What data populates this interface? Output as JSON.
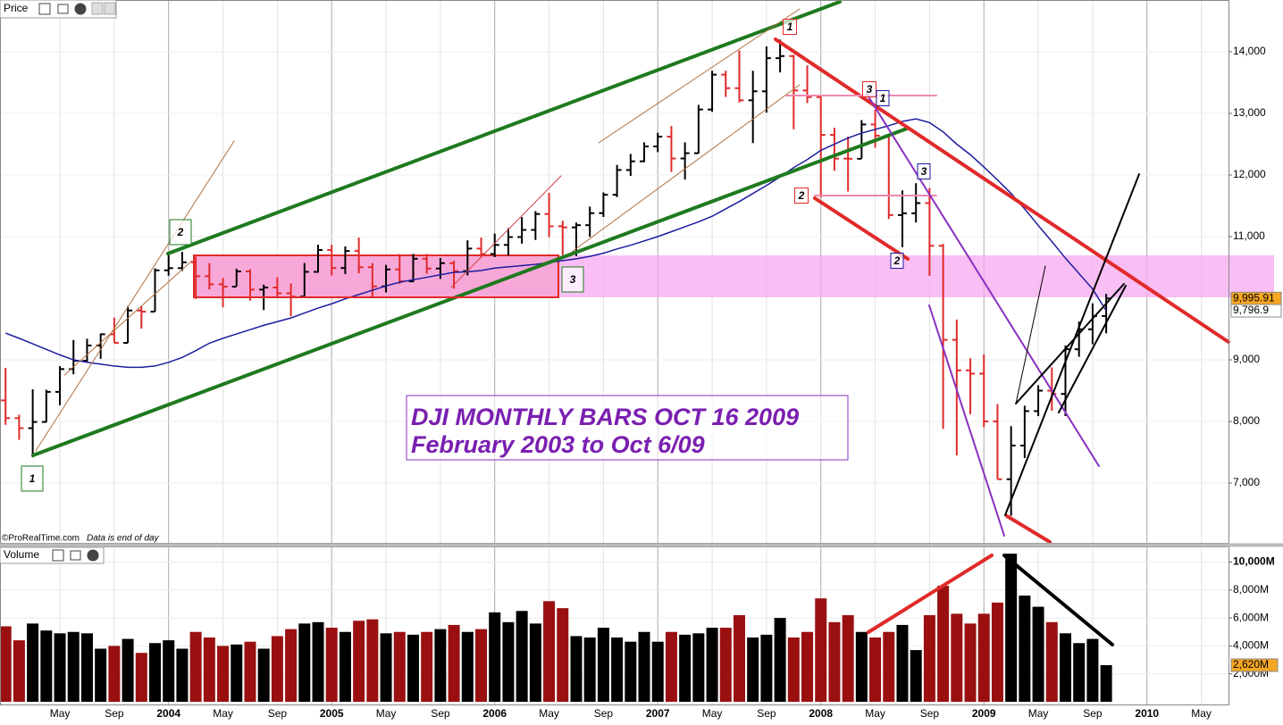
{
  "chart_data": [
    {
      "type": "ohlc",
      "title": "Price",
      "annotations": [
        "DJI MONTHLY BARS OCT 16 2009",
        "February 2003 to Oct 6/09"
      ],
      "source": "©ProRealTime.com",
      "note": "Data is end of day",
      "x": [
        "2003-01",
        "2003-02",
        "2003-03",
        "2003-04",
        "2003-05",
        "2003-06",
        "2003-07",
        "2003-08",
        "2003-09",
        "2003-10",
        "2003-11",
        "2003-12",
        "2004-01",
        "2004-02",
        "2004-03",
        "2004-04",
        "2004-05",
        "2004-06",
        "2004-07",
        "2004-08",
        "2004-09",
        "2004-10",
        "2004-11",
        "2004-12",
        "2005-01",
        "2005-02",
        "2005-03",
        "2005-04",
        "2005-05",
        "2005-06",
        "2005-07",
        "2005-08",
        "2005-09",
        "2005-10",
        "2005-11",
        "2005-12",
        "2006-01",
        "2006-02",
        "2006-03",
        "2006-04",
        "2006-05",
        "2006-06",
        "2006-07",
        "2006-08",
        "2006-09",
        "2006-10",
        "2006-11",
        "2006-12",
        "2007-01",
        "2007-02",
        "2007-03",
        "2007-04",
        "2007-05",
        "2007-06",
        "2007-07",
        "2007-08",
        "2007-09",
        "2007-10",
        "2007-11",
        "2007-12",
        "2008-01",
        "2008-02",
        "2008-03",
        "2008-04",
        "2008-05",
        "2008-06",
        "2008-07",
        "2008-08",
        "2008-09",
        "2008-10",
        "2008-11",
        "2008-12",
        "2009-01",
        "2009-02",
        "2009-03",
        "2009-04",
        "2009-05",
        "2009-06",
        "2009-07",
        "2009-08",
        "2009-09",
        "2009-10"
      ],
      "open": [
        8342,
        8054,
        7891,
        7992,
        8480,
        8850,
        8985,
        9233,
        9415,
        9275,
        9801,
        9782,
        10453,
        10488,
        10583,
        10357,
        10226,
        10188,
        10435,
        10140,
        10174,
        10080,
        10027,
        10428,
        10783,
        10490,
        10766,
        10504,
        10193,
        10467,
        10275,
        10641,
        10482,
        10569,
        10440,
        10806,
        10718,
        10865,
        10993,
        11109,
        11367,
        11168,
        11150,
        11186,
        11381,
        11679,
        12081,
        12222,
        12463,
        12622,
        12268,
        12354,
        13063,
        13628,
        13409,
        13212,
        13358,
        13896,
        13930,
        13372,
        13265,
        12650,
        12266,
        12263,
        12820,
        12638,
        11350,
        11378,
        11544,
        10851,
        9325,
        8829,
        8776,
        8001,
        7063,
        7609,
        8168,
        8500,
        8447,
        9172,
        9496,
        9712
      ],
      "high": [
        8869,
        8109,
        8522,
        8515,
        8898,
        9323,
        9343,
        9428,
        9686,
        9869,
        9872,
        10484,
        10753,
        10753,
        10678,
        10570,
        10330,
        10479,
        10470,
        10221,
        10342,
        10239,
        10572,
        10868,
        10868,
        10841,
        10984,
        10570,
        10542,
        10717,
        10720,
        10719,
        10653,
        10609,
        10940,
        10984,
        11049,
        11137,
        11317,
        11413,
        11709,
        11257,
        11228,
        11487,
        11718,
        12163,
        12342,
        12529,
        12686,
        12795,
        12530,
        13138,
        13692,
        13692,
        14021,
        13692,
        14087,
        14198,
        13950,
        13779,
        13279,
        12767,
        12622,
        12891,
        13058,
        12657,
        11750,
        11867,
        11790,
        10882,
        9654,
        9026,
        9088,
        8281,
        7924,
        8256,
        8588,
        8878,
        9233,
        9621,
        9917,
        10070
      ],
      "low": [
        7945,
        7702,
        7417,
        7988,
        8264,
        8765,
        8969,
        9017,
        9275,
        9275,
        9508,
        9782,
        10367,
        10443,
        9991,
        10144,
        9852,
        10195,
        9962,
        9808,
        10016,
        9708,
        10035,
        10416,
        10368,
        10393,
        10404,
        10012,
        10094,
        10235,
        10259,
        10397,
        10313,
        10156,
        10370,
        10661,
        10667,
        10690,
        10886,
        10946,
        10993,
        10699,
        10683,
        10996,
        11319,
        11642,
        11984,
        12209,
        12370,
        12050,
        11926,
        12350,
        13026,
        13266,
        13178,
        12518,
        13013,
        13665,
        12743,
        13167,
        11634,
        12069,
        11731,
        12266,
        12442,
        11287,
        10827,
        11229,
        10365,
        7882,
        7449,
        8118,
        7909,
        7063,
        6470,
        7406,
        8087,
        8174,
        8087,
        9050,
        9252,
        9430
      ],
      "close": [
        8054,
        7891,
        7992,
        8480,
        8850,
        8985,
        9233,
        9415,
        9275,
        9801,
        9782,
        10453,
        10488,
        10583,
        10357,
        10226,
        10188,
        10435,
        10140,
        10174,
        10080,
        10027,
        10428,
        10783,
        10490,
        10766,
        10504,
        10193,
        10467,
        10275,
        10641,
        10482,
        10569,
        10440,
        10806,
        10718,
        10865,
        10993,
        11109,
        11367,
        11168,
        11150,
        11186,
        11381,
        11679,
        12081,
        12222,
        12463,
        12622,
        12268,
        12354,
        13063,
        13628,
        13409,
        13212,
        13358,
        13896,
        13930,
        13372,
        13265,
        12650,
        12266,
        12263,
        12820,
        12638,
        11350,
        11378,
        11544,
        10851,
        9325,
        8829,
        8776,
        8001,
        7063,
        7609,
        8168,
        8500,
        8447,
        9172,
        9496,
        9712,
        9996
      ],
      "up_color": "#000000",
      "down_color": "#e02a2a",
      "moving_average": {
        "color": "#1c1ca0",
        "values": [
          9435,
          9350,
          9260,
          9170,
          9080,
          9000,
          8960,
          8930,
          8900,
          8880,
          8880,
          8900,
          8960,
          9040,
          9150,
          9270,
          9350,
          9420,
          9490,
          9560,
          9620,
          9680,
          9760,
          9840,
          9910,
          9990,
          10060,
          10130,
          10200,
          10260,
          10300,
          10340,
          10380,
          10420,
          10430,
          10450,
          10490,
          10510,
          10530,
          10550,
          10580,
          10610,
          10640,
          10680,
          10730,
          10800,
          10860,
          10930,
          11000,
          11080,
          11160,
          11240,
          11330,
          11450,
          11570,
          11700,
          11830,
          11970,
          12120,
          12250,
          12400,
          12500,
          12600,
          12680,
          12740,
          12800,
          12870,
          12910,
          12850,
          12700,
          12500,
          12330,
          12130,
          11920,
          11700,
          11450,
          11180,
          10920,
          10650,
          10400,
          10150,
          9797
        ]
      },
      "price_labels": [
        {
          "value": 9995.91,
          "label": "9,995.91",
          "color": "#f5a623"
        },
        {
          "value": 9796.9,
          "label": "9,796.9",
          "color": "#ffffff"
        }
      ],
      "wave_labels": [
        {
          "text": "1",
          "color": "#1e7a1e"
        },
        {
          "text": "2",
          "color": "#1e7a1e"
        },
        {
          "text": "3",
          "color": "#1e7a1e"
        },
        {
          "text": "1",
          "color": "#e02a2a"
        },
        {
          "text": "3",
          "color": "#e02a2a"
        },
        {
          "text": "2",
          "color": "#e02a2a"
        },
        {
          "text": "1",
          "color": "#1c1ca0"
        },
        {
          "text": "3",
          "color": "#1c1ca0"
        },
        {
          "text": "2",
          "color": "#1c1ca0"
        }
      ],
      "xlim": [
        "2002-12",
        "2010-07"
      ],
      "xticks": [
        {
          "value": "2003-05",
          "label": "May"
        },
        {
          "value": "2003-09",
          "label": "Sep"
        },
        {
          "value": "2004-01",
          "label": "2004"
        },
        {
          "value": "2004-05",
          "label": "May"
        },
        {
          "value": "2004-09",
          "label": "Sep"
        },
        {
          "value": "2005-01",
          "label": "2005"
        },
        {
          "value": "2005-05",
          "label": "May"
        },
        {
          "value": "2005-09",
          "label": "Sep"
        },
        {
          "value": "2006-01",
          "label": "2006"
        },
        {
          "value": "2006-05",
          "label": "May"
        },
        {
          "value": "2006-09",
          "label": "Sep"
        },
        {
          "value": "2007-01",
          "label": "2007"
        },
        {
          "value": "2007-05",
          "label": "May"
        },
        {
          "value": "2007-09",
          "label": "Sep"
        },
        {
          "value": "2008-01",
          "label": "2008"
        },
        {
          "value": "2008-05",
          "label": "May"
        },
        {
          "value": "2008-09",
          "label": "Sep"
        },
        {
          "value": "2009-01",
          "label": "2009"
        },
        {
          "value": "2009-05",
          "label": "May"
        },
        {
          "value": "2009-09",
          "label": "Sep"
        },
        {
          "value": "2010-01",
          "label": "2010"
        },
        {
          "value": "2010-05",
          "label": "May"
        }
      ],
      "ylim": [
        6030,
        14840
      ],
      "yticks": [
        {
          "value": 7000,
          "label": "7,000"
        },
        {
          "value": 8000,
          "label": "8,000"
        },
        {
          "value": 9000,
          "label": "9,000"
        },
        {
          "value": 11000,
          "label": "11,000"
        },
        {
          "value": 12000,
          "label": "12,000"
        },
        {
          "value": 13000,
          "label": "13,000"
        },
        {
          "value": 14000,
          "label": "14,000"
        }
      ],
      "grid": true
    },
    {
      "type": "bar",
      "title": "Volume",
      "values": [
        5400,
        4400,
        5600,
        5100,
        4900,
        5000,
        4900,
        3800,
        4000,
        4500,
        3500,
        4200,
        4400,
        3800,
        5000,
        4600,
        4000,
        4100,
        4300,
        3800,
        4700,
        5200,
        5600,
        5700,
        5300,
        5000,
        5800,
        5900,
        4900,
        5000,
        4800,
        5000,
        5200,
        5500,
        5000,
        5200,
        6400,
        5700,
        6500,
        5600,
        7200,
        6700,
        4700,
        4600,
        5300,
        4600,
        4300,
        5000,
        4300,
        5000,
        4800,
        4900,
        5300,
        5300,
        6200,
        4600,
        4800,
        6000,
        4600,
        5000,
        7400,
        5700,
        6200,
        5000,
        4600,
        5000,
        5500,
        3700,
        6200,
        8300,
        6300,
        5600,
        6300,
        7100,
        10600,
        7600,
        6800,
        5700,
        4900,
        4200,
        4500,
        2620
      ],
      "ylim": [
        0,
        10990
      ],
      "yticks": [
        {
          "value": 2000,
          "label": "2,000M"
        },
        {
          "value": 4000,
          "label": "4,000M"
        },
        {
          "value": 6000,
          "label": "6,000M"
        },
        {
          "value": 8000,
          "label": "8,000M"
        },
        {
          "value": 10000,
          "label": "10,000M"
        }
      ],
      "last_label": {
        "value": 2620,
        "label": "2,620M",
        "color": "#f5a623"
      }
    }
  ]
}
